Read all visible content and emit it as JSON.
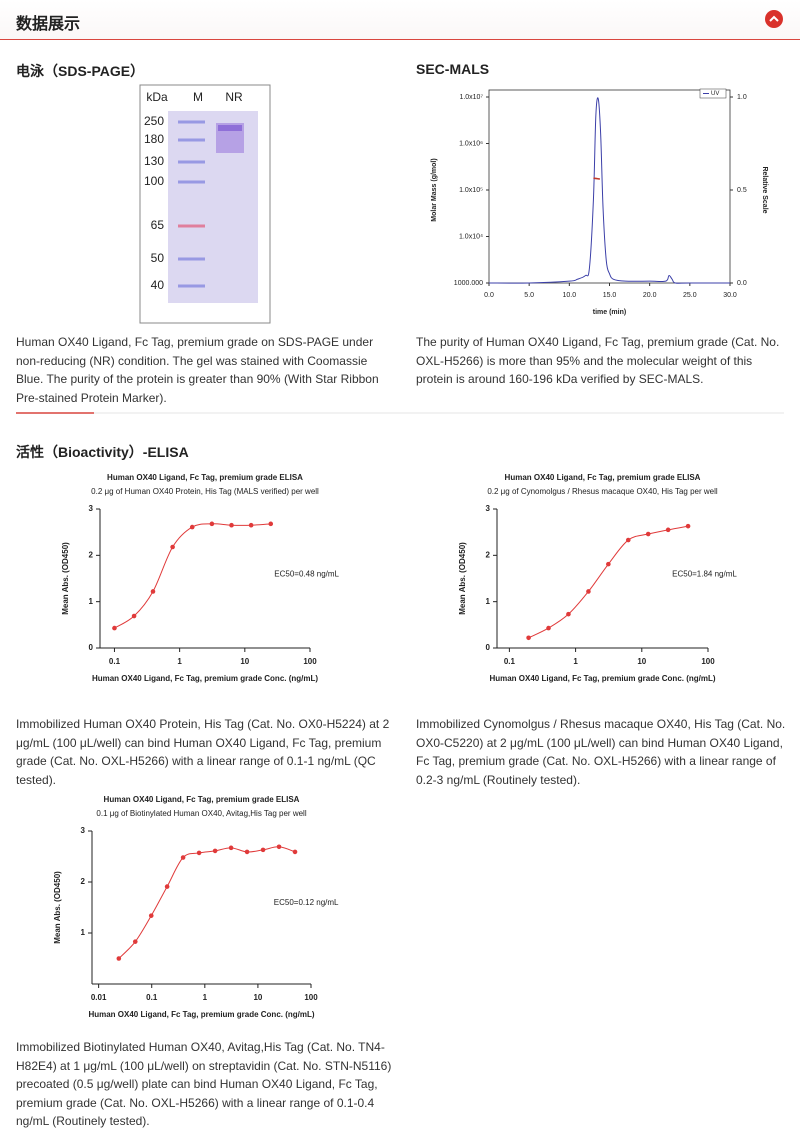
{
  "header": {
    "title": "数据展示"
  },
  "sds_page": {
    "heading": "电泳（SDS-PAGE）",
    "lanes": [
      "kDa",
      "M",
      "NR"
    ],
    "ladder": [
      250,
      180,
      130,
      100,
      65,
      50,
      40
    ],
    "caption": "Human OX40 Ligand, Fc Tag, premium grade on SDS-PAGE under non-reducing (NR) condition. The gel was stained with Coomassie Blue. The purity of the protein is greater than 90% (With Star Ribbon Pre-stained Protein Marker)."
  },
  "sec_mals": {
    "heading": "SEC-MALS",
    "caption": "The purity of Human OX40 Ligand, Fc Tag, premium grade (Cat. No. OXL-H5266) is more than 95% and the molecular weight of this protein is around 160-196 kDa verified by SEC-MALS."
  },
  "bioactivity": {
    "heading": "活性（Bioactivity）-ELISA",
    "captions": [
      "Immobilized Human OX40 Protein, His Tag (Cat. No. OX0-H5224) at 2 μg/mL (100 μL/well) can bind Human OX40 Ligand, Fc Tag, premium grade (Cat. No. OXL-H5266) with a linear range of 0.1-1 ng/mL (QC tested).",
      "Immobilized Cynomolgus / Rhesus macaque OX40, His Tag (Cat. No. OX0-C5220) at 2 μg/mL (100 μL/well) can bind Human OX40 Ligand, Fc Tag, premium grade (Cat. No. OXL-H5266) with a linear range of 0.2-3 ng/mL (Routinely tested).",
      "Immobilized Biotinylated Human OX40, Avitag,His Tag (Cat. No. TN4-H82E4) at 1 μg/mL (100 μL/well) on streptavidin (Cat. No. STN-N5116) precoated (0.5 μg/well) plate can bind Human OX40 Ligand, Fc Tag, premium grade (Cat. No. OXL-H5266) with a linear range of 0.1-0.4 ng/mL (Routinely tested)."
    ]
  },
  "chart_data": [
    {
      "type": "line",
      "xlabel": "time (min)",
      "ylabel": "Molar Mass (g/mol)",
      "y2label": "Relative Scale",
      "xlim": [
        0,
        30
      ],
      "xticks": [
        {
          "value": 0,
          "label": "0.0"
        },
        {
          "value": 5,
          "label": "5.0"
        },
        {
          "value": 10,
          "label": "10.0"
        },
        {
          "value": 15,
          "label": "15.0"
        },
        {
          "value": 20,
          "label": "20.0"
        },
        {
          "value": 25,
          "label": "25.0"
        },
        {
          "value": 30,
          "label": "30.0"
        }
      ],
      "ylim": [
        1000,
        10000000
      ],
      "ylog": true,
      "yticks": [
        {
          "value": 1000,
          "label": "1000.000"
        },
        {
          "value": 10000,
          "label": "1.0x10⁴"
        },
        {
          "value": 100000,
          "label": "1.0x10⁵"
        },
        {
          "value": 1000000,
          "label": "1.0x10⁶"
        },
        {
          "value": 10000000,
          "label": "1.0x10⁷"
        }
      ],
      "y2lim": [
        0,
        1
      ],
      "y2ticks": [
        {
          "value": 0,
          "label": "0.0"
        },
        {
          "value": 0.5,
          "label": "0.5"
        },
        {
          "value": 1,
          "label": "1.0"
        }
      ],
      "legend": "top-right",
      "series": [
        {
          "name": "UV",
          "color": "#3b3fa8",
          "axis": "y2",
          "x": [
            0,
            5,
            10,
            11,
            12,
            12.5,
            13,
            13.3,
            13.6,
            13.9,
            14.2,
            14.6,
            15,
            15.5,
            17,
            20,
            22,
            22.4,
            22.8,
            23.2,
            25,
            30
          ],
          "values": [
            0.0,
            0.0,
            0.01,
            0.02,
            0.04,
            0.08,
            0.45,
            0.9,
            0.99,
            0.8,
            0.4,
            0.12,
            0.05,
            0.02,
            0.01,
            0.01,
            0.01,
            0.04,
            0.02,
            0.0,
            0.0,
            0.0
          ]
        },
        {
          "color": "#c0392b",
          "axis": "y",
          "x": [
            13.0,
            13.4,
            13.8
          ],
          "values": [
            180000,
            176000,
            172000
          ]
        }
      ]
    },
    {
      "type": "scatter",
      "title": "Human OX40 Ligand, Fc Tag, premium grade ELISA",
      "subtitle": "0.2 μg of Human OX40 Protein, His Tag (MALS verified) per well",
      "xlabel": "Human OX40 Ligand, Fc Tag, premium grade Conc. (ng/mL)",
      "ylabel": "Mean Abs. (OD450)",
      "annotation": "EC50=0.48 ng/mL",
      "xlog": true,
      "xlim": [
        0.06,
        100
      ],
      "xticks": [
        0.1,
        1,
        10,
        100
      ],
      "ylim": [
        0,
        3
      ],
      "yticks": [
        0,
        1,
        2,
        3
      ],
      "color": "#e03a3a",
      "x": [
        0.1,
        0.2,
        0.39,
        0.78,
        1.56,
        3.125,
        6.25,
        12.5,
        25
      ],
      "values": [
        0.43,
        0.69,
        1.22,
        2.18,
        2.61,
        2.68,
        2.65,
        2.65,
        2.68
      ]
    },
    {
      "type": "scatter",
      "title": "Human OX40 Ligand, Fc Tag, premium grade ELISA",
      "subtitle": "0.2 μg of Cynomolgus / Rhesus macaque OX40, His Tag per well",
      "xlabel": "Human OX40 Ligand, Fc Tag, premium grade Conc. (ng/mL)",
      "ylabel": "Mean Abs. (OD450)",
      "annotation": "EC50=1.84 ng/mL",
      "xlog": true,
      "xlim": [
        0.065,
        100
      ],
      "xticks": [
        0.1,
        1,
        10,
        100
      ],
      "ylim": [
        0,
        3
      ],
      "yticks": [
        0,
        1,
        2,
        3
      ],
      "color": "#e03a3a",
      "x": [
        0.195,
        0.39,
        0.78,
        1.5625,
        3.125,
        6.25,
        12.5,
        25,
        50
      ],
      "values": [
        0.22,
        0.43,
        0.73,
        1.22,
        1.81,
        2.33,
        2.46,
        2.55,
        2.63
      ]
    },
    {
      "type": "scatter",
      "title": "Human OX40 Ligand, Fc Tag, premium grade ELISA",
      "subtitle": "0.1 μg of Biotinylated Human OX40, Avitag,His Tag per well",
      "xlabel": "Human OX40 Ligand, Fc Tag, premium grade Conc. (ng/mL)",
      "ylabel": "Mean Abs. (OD450)",
      "annotation": "EC50=0.12 ng/mL",
      "xlog": true,
      "xlim": [
        0.0075,
        100
      ],
      "xticks": [
        0.01,
        0.1,
        1,
        10,
        100
      ],
      "ylim": [
        0,
        3
      ],
      "yticks": [
        1,
        2,
        3
      ],
      "color": "#e03a3a",
      "x": [
        0.024,
        0.049,
        0.098,
        0.195,
        0.39,
        0.78,
        1.5625,
        3.125,
        6.25,
        12.5,
        25,
        50
      ],
      "values": [
        0.5,
        0.83,
        1.34,
        1.91,
        2.48,
        2.57,
        2.61,
        2.67,
        2.59,
        2.63,
        2.69,
        2.59
      ]
    }
  ]
}
